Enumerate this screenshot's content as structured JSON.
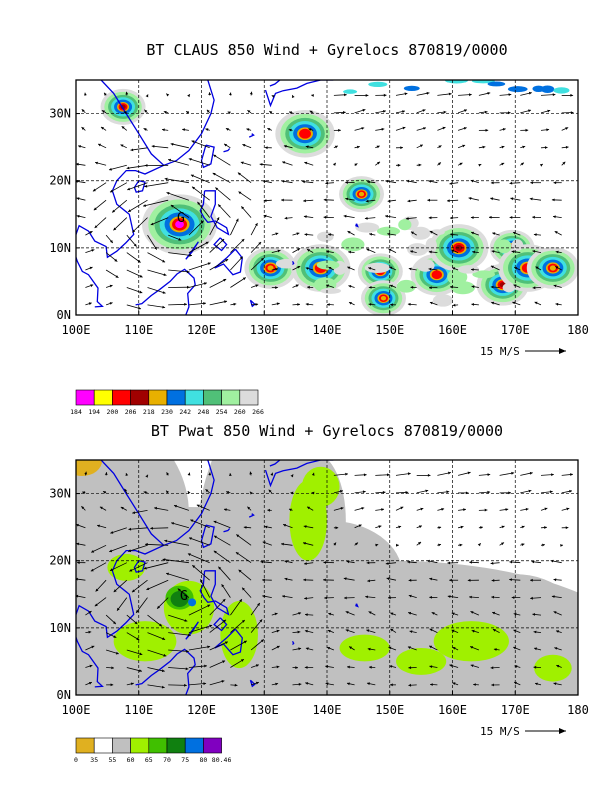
{
  "chart_data": [
    {
      "type": "heatmap",
      "title": "BT CLAUS 850 Wind + Gyrelocs 870819/0000",
      "x_ticks": [
        "100E",
        "110E",
        "120E",
        "130E",
        "140E",
        "150E",
        "160E",
        "170E",
        "180"
      ],
      "y_ticks": [
        "0N",
        "10N",
        "20N",
        "30N"
      ],
      "xlim": [
        100,
        180
      ],
      "ylim": [
        0,
        35
      ],
      "grid": true,
      "vector_key": "15 M/S",
      "colorbar": {
        "labels": [
          "184",
          "194",
          "200",
          "206",
          "218",
          "230",
          "242",
          "248",
          "254",
          "260",
          "266"
        ],
        "colors": [
          "#ff00ff",
          "#ffff00",
          "#ff0000",
          "#a00000",
          "#e8b000",
          "#0070e0",
          "#40e0e0",
          "#50c078",
          "#a0f0a0",
          "#dcdcdc"
        ]
      },
      "gyre_center": {
        "label": "G",
        "lon": 116,
        "lat": 13
      },
      "cloud_blobs": [
        {
          "lon": 107.5,
          "lat": 31,
          "core": "#a00000"
        },
        {
          "lon": 116.5,
          "lat": 13.5,
          "core": "#ff00ff"
        },
        {
          "lon": 136.5,
          "lat": 27,
          "core": "#ff0000"
        },
        {
          "lon": 145.5,
          "lat": 18,
          "core": "#e8b000"
        },
        {
          "lon": 131,
          "lat": 7,
          "core": "#e8b000"
        },
        {
          "lon": 139,
          "lat": 7,
          "core": "#ff0000"
        },
        {
          "lon": 148.5,
          "lat": 6.5,
          "core": "#ff0000"
        },
        {
          "lon": 157.5,
          "lat": 6,
          "core": "#ff0000"
        },
        {
          "lon": 161,
          "lat": 10,
          "core": "#a00000"
        },
        {
          "lon": 169.5,
          "lat": 10,
          "core": "#ff0000"
        },
        {
          "lon": 168,
          "lat": 4.5,
          "core": "#a00000"
        },
        {
          "lon": 172,
          "lat": 7,
          "core": "#ff0000"
        },
        {
          "lon": 149,
          "lat": 2.5,
          "core": "#e8b000"
        },
        {
          "lon": 176,
          "lat": 7,
          "core": "#e8b000"
        }
      ]
    },
    {
      "type": "heatmap",
      "title": "BT Pwat 850 Wind + Gyrelocs 870819/0000",
      "x_ticks": [
        "100E",
        "110E",
        "120E",
        "130E",
        "140E",
        "150E",
        "160E",
        "170E",
        "180"
      ],
      "y_ticks": [
        "0N",
        "10N",
        "20N",
        "30N"
      ],
      "xlim": [
        100,
        180
      ],
      "ylim": [
        0,
        35
      ],
      "grid": true,
      "vector_key": "15 M/S",
      "colorbar": {
        "labels": [
          "0",
          "35",
          "55",
          "60",
          "65",
          "70",
          "75",
          "80",
          "80.46"
        ],
        "colors": [
          "#e0b020",
          "#ffffff",
          "#c0c0c0",
          "#a0f000",
          "#40c000",
          "#108010",
          "#0070e0",
          "#8000c0"
        ]
      },
      "gyre_center": {
        "label": "G",
        "lon": 116.5,
        "lat": 14.5
      }
    }
  ]
}
